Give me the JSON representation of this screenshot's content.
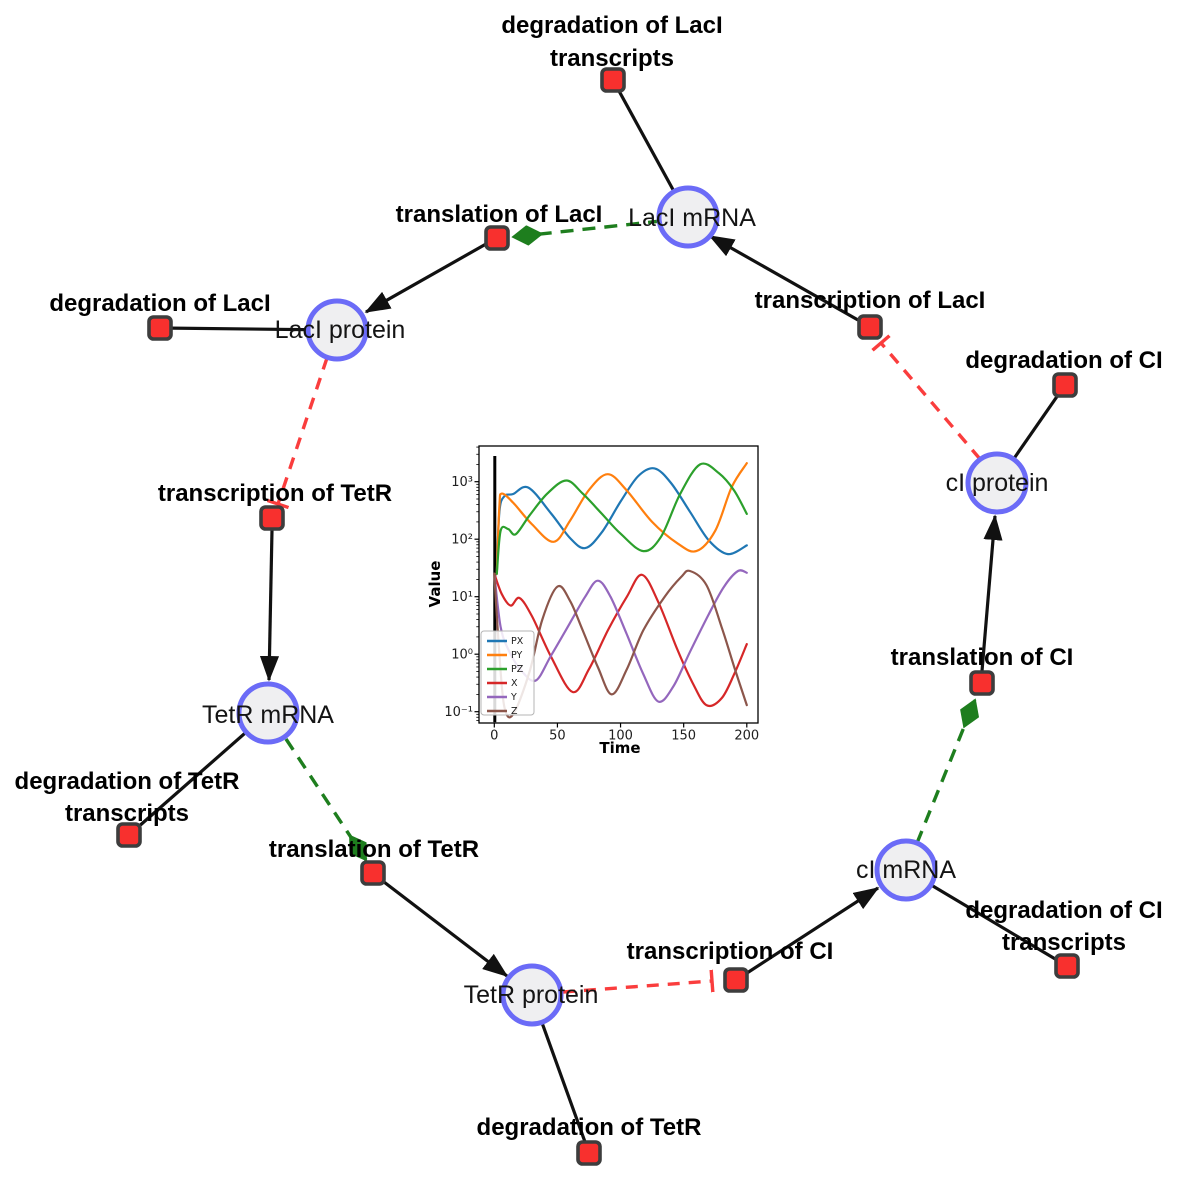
{
  "diagram": {
    "species": [
      {
        "label": "LacI mRNA"
      },
      {
        "label": "LacI protein"
      },
      {
        "label": "TetR mRNA"
      },
      {
        "label": "TetR protein"
      },
      {
        "label": "cI mRNA"
      },
      {
        "label": "cI protein"
      }
    ],
    "reactions": [
      {
        "label_lines": [
          "degradation of LacI",
          "transcripts"
        ]
      },
      {
        "label_lines": [
          "translation of LacI"
        ]
      },
      {
        "label_lines": [
          "degradation of LacI"
        ]
      },
      {
        "label_lines": [
          "transcription of TetR"
        ]
      },
      {
        "label_lines": [
          "degradation of TetR",
          "transcripts"
        ]
      },
      {
        "label_lines": [
          "translation of TetR"
        ]
      },
      {
        "label_lines": [
          "degradation of TetR"
        ]
      },
      {
        "label_lines": [
          "transcription of CI"
        ]
      },
      {
        "label_lines": [
          "degradation of CI",
          "transcripts"
        ]
      },
      {
        "label_lines": [
          "translation of CI"
        ]
      },
      {
        "label_lines": [
          "degradation of CI"
        ]
      },
      {
        "label_lines": [
          "transcription of LacI"
        ]
      }
    ],
    "colors": {
      "species_fill": "#efeff1",
      "species_stroke": "#6b6bf7",
      "reaction_fill": "#f8302e",
      "reaction_stroke": "#3d3d3d",
      "edge_black": "#111111",
      "modifier_green": "#1e7e1e",
      "inhibition_red": "#fa3d3d"
    }
  },
  "chart_data": {
    "type": "line",
    "title": "",
    "xlabel": "Time",
    "ylabel": "Value",
    "yscale": "log",
    "xlim": [
      -12,
      209
    ],
    "ylim": [
      0.063,
      4200
    ],
    "xticks": [
      0,
      50,
      100,
      150,
      200
    ],
    "xtick_labels": [
      "0",
      "50",
      "100",
      "150",
      "200"
    ],
    "ytick_values": [
      1000,
      100,
      10,
      1,
      0.1
    ],
    "ytick_labels": [
      "10³",
      "10²",
      "10¹",
      "10⁰",
      "10⁻¹"
    ],
    "legend_position": "lower left",
    "grid": false,
    "annotations": [
      {
        "type": "vline",
        "x": 0.4
      }
    ],
    "series": [
      {
        "name": "PX",
        "color": "#1f77b4",
        "points": [
          [
            2,
            25
          ],
          [
            4,
            300
          ],
          [
            8,
            560
          ],
          [
            15,
            610
          ],
          [
            27,
            790
          ],
          [
            45,
            280
          ],
          [
            60,
            105
          ],
          [
            72,
            70
          ],
          [
            85,
            130
          ],
          [
            100,
            450
          ],
          [
            114,
            1250
          ],
          [
            127,
            1700
          ],
          [
            140,
            950
          ],
          [
            155,
            300
          ],
          [
            170,
            95
          ],
          [
            185,
            55
          ],
          [
            200,
            78
          ]
        ]
      },
      {
        "name": "PY",
        "color": "#ff7f0e",
        "points": [
          [
            2,
            25
          ],
          [
            4,
            380
          ],
          [
            6,
            620
          ],
          [
            15,
            430
          ],
          [
            30,
            180
          ],
          [
            47,
            90
          ],
          [
            60,
            210
          ],
          [
            75,
            720
          ],
          [
            90,
            1350
          ],
          [
            105,
            700
          ],
          [
            125,
            200
          ],
          [
            145,
            85
          ],
          [
            160,
            62
          ],
          [
            175,
            140
          ],
          [
            188,
            800
          ],
          [
            200,
            2100
          ]
        ]
      },
      {
        "name": "PZ",
        "color": "#2ca02c",
        "points": [
          [
            2,
            25
          ],
          [
            5,
            140
          ],
          [
            11,
            150
          ],
          [
            17,
            122
          ],
          [
            28,
            260
          ],
          [
            42,
            620
          ],
          [
            57,
            1050
          ],
          [
            70,
            620
          ],
          [
            85,
            280
          ],
          [
            100,
            125
          ],
          [
            118,
            62
          ],
          [
            132,
            110
          ],
          [
            147,
            600
          ],
          [
            163,
            2000
          ],
          [
            178,
            1400
          ],
          [
            190,
            700
          ],
          [
            200,
            275
          ]
        ]
      },
      {
        "name": "X",
        "color": "#d62728",
        "points": [
          [
            0,
            25
          ],
          [
            6,
            11
          ],
          [
            13,
            7
          ],
          [
            20,
            9.5
          ],
          [
            30,
            4.5
          ],
          [
            45,
            0.9
          ],
          [
            62,
            0.22
          ],
          [
            75,
            0.55
          ],
          [
            90,
            2.6
          ],
          [
            105,
            10
          ],
          [
            117,
            24
          ],
          [
            130,
            8
          ],
          [
            145,
            1.2
          ],
          [
            157,
            0.32
          ],
          [
            168,
            0.13
          ],
          [
            180,
            0.17
          ],
          [
            190,
            0.45
          ],
          [
            200,
            1.5
          ]
        ]
      },
      {
        "name": "Y",
        "color": "#9467bd",
        "points": [
          [
            0,
            25
          ],
          [
            5,
            3
          ],
          [
            12,
            1.1
          ],
          [
            22,
            0.5
          ],
          [
            33,
            0.35
          ],
          [
            45,
            0.95
          ],
          [
            60,
            3.5
          ],
          [
            72,
            10
          ],
          [
            82,
            19
          ],
          [
            92,
            10
          ],
          [
            105,
            2.2
          ],
          [
            118,
            0.45
          ],
          [
            130,
            0.15
          ],
          [
            142,
            0.28
          ],
          [
            155,
            1.1
          ],
          [
            170,
            5
          ],
          [
            182,
            15
          ],
          [
            193,
            28
          ],
          [
            200,
            26
          ]
        ]
      },
      {
        "name": "Z",
        "color": "#8c564b",
        "points": [
          [
            0,
            25
          ],
          [
            4,
            1
          ],
          [
            8,
            0.12
          ],
          [
            15,
            0.09
          ],
          [
            28,
            0.5
          ],
          [
            38,
            4
          ],
          [
            50,
            15
          ],
          [
            60,
            8.5
          ],
          [
            70,
            2.6
          ],
          [
            82,
            0.6
          ],
          [
            93,
            0.2
          ],
          [
            105,
            0.55
          ],
          [
            118,
            2.6
          ],
          [
            135,
            10
          ],
          [
            148,
            22
          ],
          [
            155,
            28
          ],
          [
            168,
            16
          ],
          [
            180,
            3
          ],
          [
            190,
            0.6
          ],
          [
            200,
            0.13
          ]
        ]
      }
    ]
  }
}
